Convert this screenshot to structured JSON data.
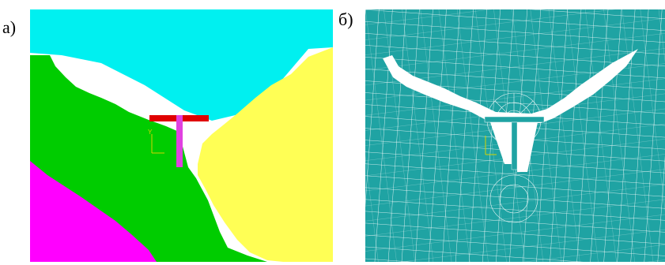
{
  "panels": [
    {
      "label": "а)",
      "caption": ""
    },
    {
      "label": "б)",
      "caption": ""
    }
  ],
  "axis_marker": {
    "label": "Y"
  },
  "colors": {
    "water": "#00f0f0",
    "left_rock": "#00cc00",
    "left_lower_rock": "#ff00ff",
    "right_rock": "#ffff55",
    "crest_beam": "#e00000",
    "pillar": "#e040e0",
    "mesh_fill": "#1fa3a3",
    "mesh_lines": "#ffffff",
    "axis_marker": "#d4d400"
  }
}
